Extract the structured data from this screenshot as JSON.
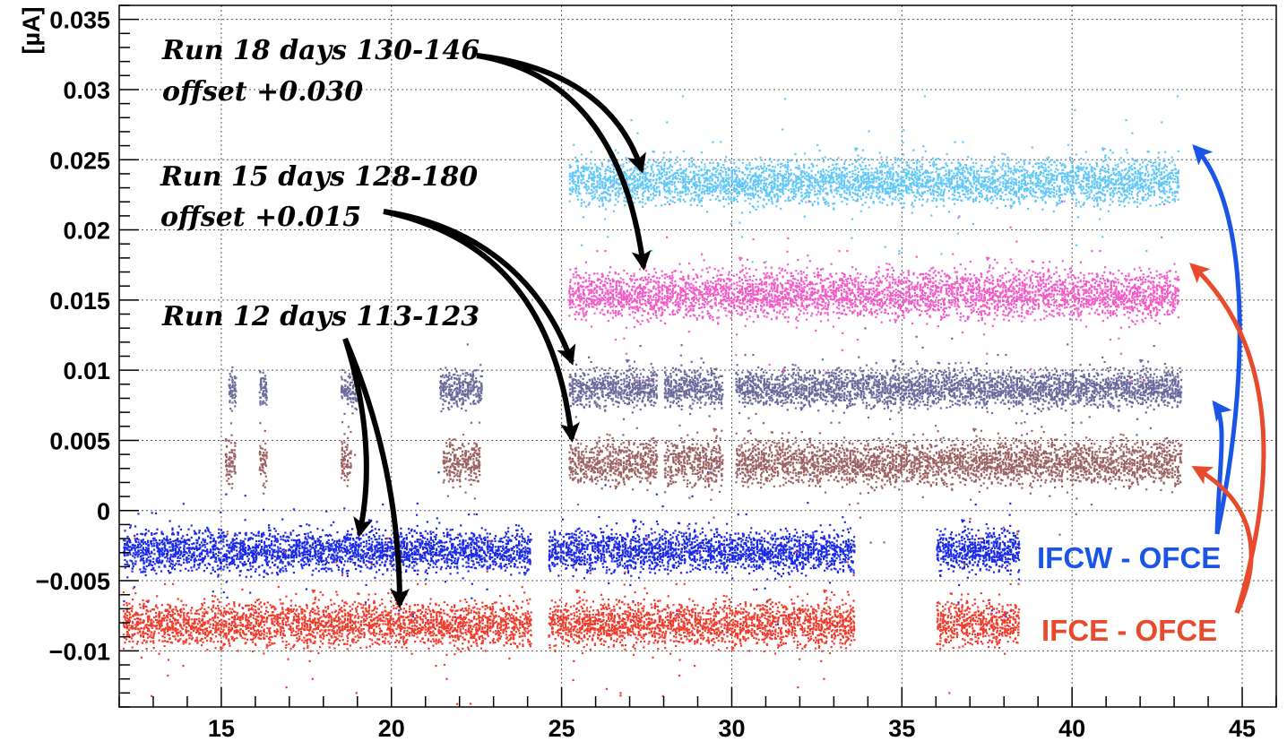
{
  "chart_data": {
    "type": "scatter",
    "title": "",
    "xlabel": "",
    "ylabel": "[µA]",
    "xlim": [
      12,
      46
    ],
    "ylim": [
      -0.014,
      0.036
    ],
    "x_ticks": [
      15,
      20,
      25,
      30,
      35,
      40,
      45
    ],
    "x_tick_labels": [
      "15",
      "20",
      "25",
      "30",
      "35",
      "40",
      "45"
    ],
    "y_ticks": [
      -0.01,
      -0.005,
      0,
      0.005,
      0.01,
      0.015,
      0.02,
      0.025,
      0.03,
      0.035
    ],
    "y_tick_labels": [
      "−0.01",
      "−0.005",
      "0",
      "0.005",
      "0.01",
      "0.015",
      "0.02",
      "0.025",
      "0.03",
      "0.035"
    ],
    "grid": true,
    "series": [
      {
        "name": "IFCW - OFCE",
        "run": "Run 12",
        "color": "#1a2ae8",
        "center": -0.0028,
        "spread": 0.0011,
        "segments": [
          [
            12.1,
            24.1
          ],
          [
            24.6,
            33.6
          ],
          [
            36.0,
            38.4
          ]
        ]
      },
      {
        "name": "IFCE - OFCE",
        "run": "Run 12",
        "color": "#f03c2c",
        "center": -0.008,
        "spread": 0.0012,
        "segments": [
          [
            12.1,
            24.1
          ],
          [
            24.6,
            33.6
          ],
          [
            36.0,
            38.4
          ]
        ]
      },
      {
        "name": "IFCW - OFCE",
        "run": "Run 15",
        "color": "#6a6a9c",
        "center": 0.0088,
        "spread": 0.001,
        "segments": [
          [
            15.2,
            15.4
          ],
          [
            16.1,
            16.3
          ],
          [
            18.5,
            18.9
          ],
          [
            21.4,
            22.6
          ],
          [
            25.2,
            27.8
          ],
          [
            28.0,
            29.7
          ],
          [
            30.1,
            43.2
          ]
        ]
      },
      {
        "name": "IFCE - OFCE",
        "run": "Run 15",
        "color": "#9c6262",
        "center": 0.0035,
        "spread": 0.0012,
        "segments": [
          [
            15.1,
            15.4
          ],
          [
            16.1,
            16.3
          ],
          [
            18.5,
            18.8
          ],
          [
            21.5,
            22.6
          ],
          [
            25.2,
            27.8
          ],
          [
            28.0,
            29.7
          ],
          [
            30.1,
            43.2
          ]
        ]
      },
      {
        "name": "IFCW - OFCE",
        "run": "Run 18",
        "color": "#62c8f8",
        "center": 0.0235,
        "spread": 0.0012,
        "segments": [
          [
            25.2,
            43.1
          ]
        ]
      },
      {
        "name": "IFCE - OFCE",
        "run": "Run 18",
        "color": "#f35cc8",
        "center": 0.0155,
        "spread": 0.0013,
        "segments": [
          [
            25.2,
            43.1
          ]
        ]
      }
    ],
    "annotations": [
      {
        "line1": "Run 18 days 130-146",
        "line2": "offset +0.030"
      },
      {
        "line1": "Run 15 days 128-180",
        "line2": "offset +0.015"
      },
      {
        "line1": "Run 12 days 113-123",
        "line2": ""
      }
    ],
    "legend": [
      {
        "label": "IFCW - OFCE",
        "color": "#1a55e8"
      },
      {
        "label": "IFCE - OFCE",
        "color": "#e84a2c"
      }
    ]
  }
}
